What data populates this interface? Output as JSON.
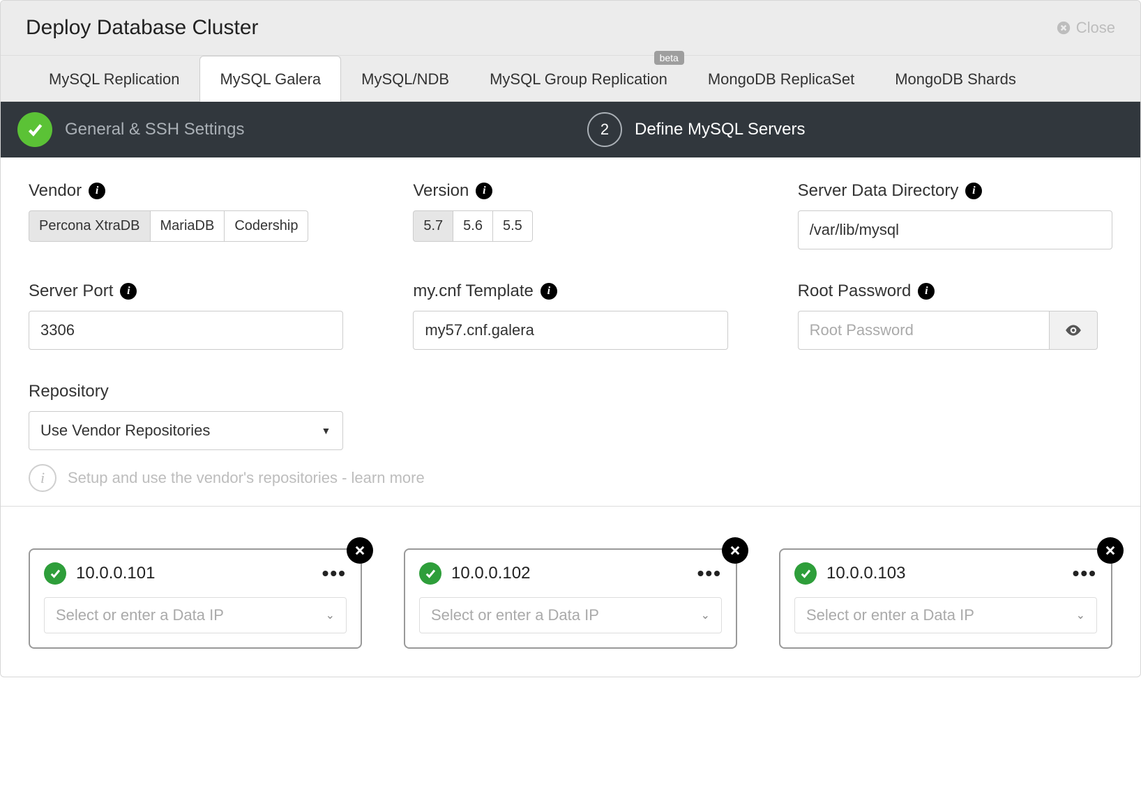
{
  "header": {
    "title": "Deploy Database Cluster",
    "close_label": "Close"
  },
  "tabs": [
    {
      "label": "MySQL Replication",
      "active": false,
      "beta": false
    },
    {
      "label": "MySQL Galera",
      "active": true,
      "beta": false
    },
    {
      "label": "MySQL/NDB",
      "active": false,
      "beta": false
    },
    {
      "label": "MySQL Group Replication",
      "active": false,
      "beta": true
    },
    {
      "label": "MongoDB ReplicaSet",
      "active": false,
      "beta": false
    },
    {
      "label": "MongoDB Shards",
      "active": false,
      "beta": false
    }
  ],
  "beta_text": "beta",
  "steps": {
    "step1_label": "General & SSH Settings",
    "step2_num": "2",
    "step2_label": "Define MySQL Servers"
  },
  "form": {
    "vendor_label": "Vendor",
    "vendors": [
      "Percona XtraDB",
      "MariaDB",
      "Codership"
    ],
    "vendor_selected": "Percona XtraDB",
    "version_label": "Version",
    "versions": [
      "5.7",
      "5.6",
      "5.5"
    ],
    "version_selected": "5.7",
    "data_dir_label": "Server Data Directory",
    "data_dir_value": "/var/lib/mysql",
    "port_label": "Server Port",
    "port_value": "3306",
    "mycnf_label": "my.cnf Template",
    "mycnf_value": "my57.cnf.galera",
    "rootpw_label": "Root Password",
    "rootpw_placeholder": "Root Password",
    "repo_label": "Repository",
    "repo_value": "Use Vendor Repositories",
    "repo_hint": "Setup and use the vendor's repositories - learn more"
  },
  "servers": {
    "data_ip_placeholder": "Select or enter a Data IP",
    "list": [
      {
        "ip": "10.0.0.101"
      },
      {
        "ip": "10.0.0.102"
      },
      {
        "ip": "10.0.0.103"
      }
    ]
  },
  "colors": {
    "header_bg": "#ececec",
    "steps_bg": "#31373d",
    "accent_green": "#5bc236",
    "ok_green": "#2e9e3a",
    "border": "#cccccc"
  }
}
